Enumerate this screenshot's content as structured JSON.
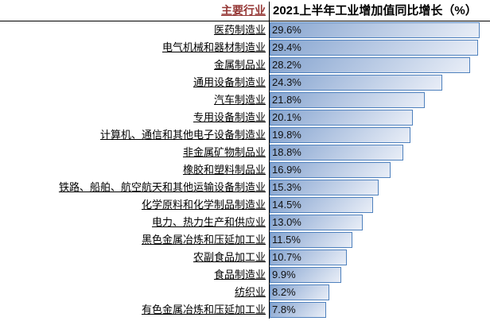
{
  "header": {
    "left_label": "主要行业",
    "right_label": "2021上半年工业增加值同比增长（%）"
  },
  "colors": {
    "header_left_text": "#953735",
    "bar_border": "#4f81bd",
    "bar_gradient_start": "#85a4cf",
    "bar_gradient_end": "#e9eef7",
    "divider_line": "#000000"
  },
  "chart_data": {
    "type": "bar",
    "orientation": "horizontal",
    "title": "2021上半年工业增加值同比增长（%）",
    "xlabel": "同比增长（%）",
    "ylabel": "主要行业",
    "xlim": [
      0,
      30
    ],
    "grid": false,
    "legend": "none",
    "categories": [
      "医药制造业",
      "电气机械和器材制造业",
      "金属制品业",
      "通用设备制造业",
      "汽车制造业",
      "专用设备制造业",
      "计算机、通信和其他电子设备制造业",
      "非金属矿物制品业",
      "橡胶和塑料制品业",
      "铁路、船舶、航空航天和其他运输设备制造业",
      "化学原料和化学制品制造业",
      "电力、热力生产和供应业",
      "黑色金属冶炼和压延加工业",
      "农副食品加工业",
      "食品制造业",
      "纺织业",
      "有色金属冶炼和压延加工业"
    ],
    "values": [
      29.6,
      29.4,
      28.2,
      24.3,
      21.8,
      20.1,
      19.8,
      18.8,
      16.9,
      15.3,
      14.5,
      13.0,
      11.5,
      10.7,
      9.9,
      8.2,
      7.8
    ],
    "value_labels": [
      "29.6%",
      "29.4%",
      "28.2%",
      "24.3%",
      "21.8%",
      "20.1%",
      "19.8%",
      "18.8%",
      "16.9%",
      "15.3%",
      "14.5%",
      "13.0%",
      "11.5%",
      "10.7%",
      "9.9%",
      "8.2%",
      "7.8%"
    ]
  }
}
